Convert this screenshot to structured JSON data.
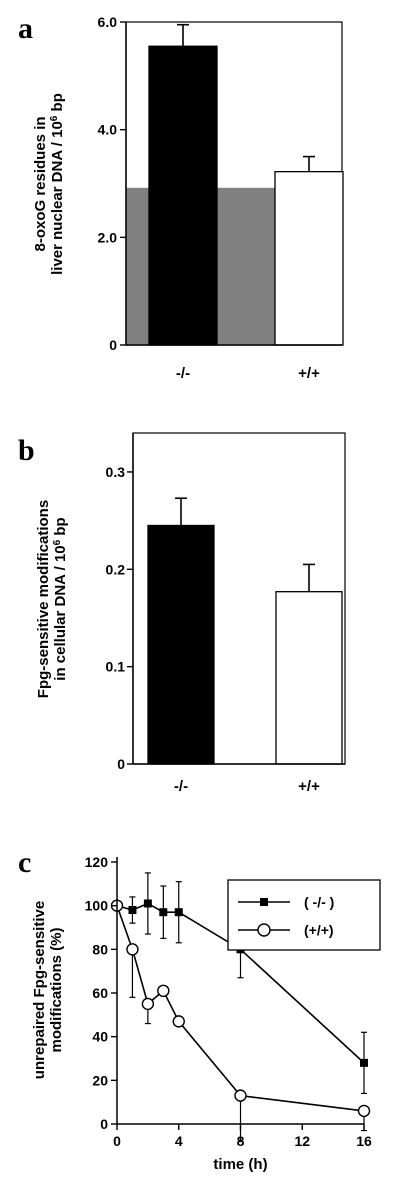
{
  "chart_data": [
    {
      "panel": "a",
      "type": "bar",
      "ylabel_line1": "8-oxoG residues in",
      "ylabel_line2_pre": "liver nuclear DNA / 10",
      "ylabel_sup": "6",
      "ylabel_line2_post": " bp",
      "categories": [
        "-/-",
        "+/+"
      ],
      "values": [
        5.55,
        3.22
      ],
      "errors": [
        0.4,
        0.28
      ],
      "bar_colors": [
        "#000000",
        "#ffffff"
      ],
      "yticks": [
        0,
        2.0,
        4.0,
        6.0
      ],
      "ytick_labels": [
        "0",
        "2.0",
        "4.0",
        "6.0"
      ],
      "ylim": [
        0,
        6.0
      ],
      "background_band_level": 2.92,
      "background_band_color": "#808080"
    },
    {
      "panel": "b",
      "type": "bar",
      "ylabel_line1": "Fpg-sensitive modifications",
      "ylabel_line2_pre": "in cellular DNA / 10",
      "ylabel_sup": "6",
      "ylabel_line2_post": " bp",
      "categories": [
        "-/-",
        "+/+"
      ],
      "values": [
        0.245,
        0.177
      ],
      "errors": [
        0.028,
        0.028
      ],
      "bar_colors": [
        "#000000",
        "#ffffff"
      ],
      "yticks": [
        0,
        0.1,
        0.2,
        0.3
      ],
      "ytick_labels": [
        "0",
        "0.1",
        "0.2",
        "0.3"
      ],
      "ylim": [
        0,
        0.34
      ]
    },
    {
      "panel": "c",
      "type": "line",
      "ylabel_line1": "unrepaired Fpg-sensitive",
      "ylabel_line2": "modifications (%)",
      "xlabel": "time (h)",
      "xticks": [
        0,
        4,
        8,
        12,
        16
      ],
      "yticks": [
        0,
        20,
        40,
        60,
        80,
        100,
        120
      ],
      "xlim": [
        0,
        16
      ],
      "ylim": [
        0,
        120
      ],
      "series": [
        {
          "name": "( -/- )",
          "marker": "square",
          "x": [
            0,
            1,
            2,
            3,
            4,
            8,
            16
          ],
          "y": [
            100,
            98,
            101,
            97,
            97,
            80,
            28
          ],
          "err": [
            0,
            6,
            14,
            12,
            14,
            13,
            14
          ]
        },
        {
          "name": "(+/+)",
          "marker": "circle",
          "x": [
            0,
            1,
            2,
            3,
            4,
            8,
            16
          ],
          "y": [
            100,
            80,
            55,
            61,
            47,
            13,
            6
          ],
          "err": [
            0,
            22,
            9,
            0,
            0,
            21,
            9
          ]
        }
      ]
    }
  ]
}
